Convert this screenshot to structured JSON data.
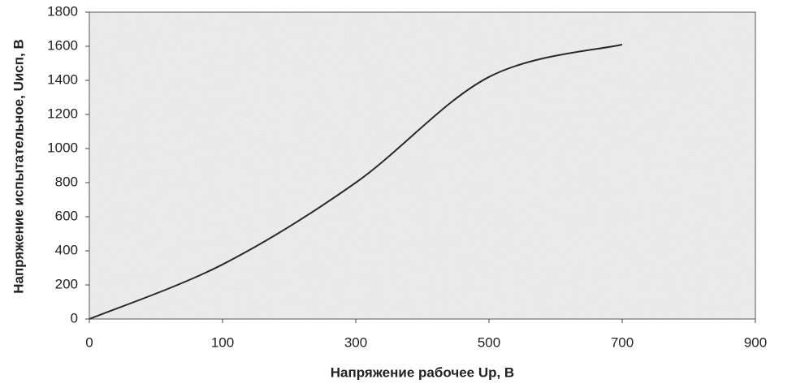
{
  "chart_data": {
    "type": "line",
    "x_label": "Напряжение рабочее Up, В",
    "y_label": "Напряжение испытательное, Uисп, В",
    "categories": [
      "0",
      "100",
      "300",
      "500",
      "700",
      "900"
    ],
    "series": [
      {
        "name": "Uисп",
        "color": "#2a2a2a",
        "values": [
          0,
          320,
          800,
          1420,
          1610,
          null
        ]
      }
    ],
    "ylim": [
      0,
      1800
    ],
    "yticks": [
      0,
      200,
      400,
      600,
      800,
      1000,
      1200,
      1400,
      1600,
      1800
    ]
  }
}
